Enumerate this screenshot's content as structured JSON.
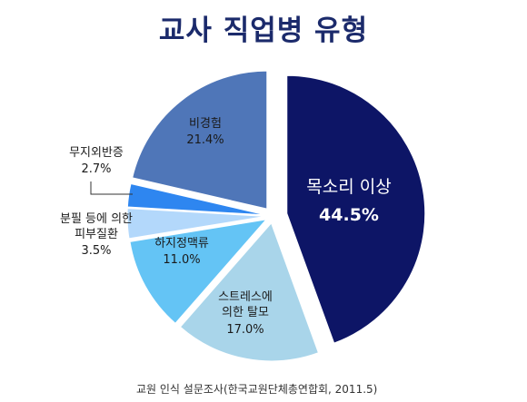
{
  "title": "교사 직업병 유형",
  "source": "교원 인식 설문조사(한국교원단체총연합회, 2011.5)",
  "chart_data": {
    "type": "pie",
    "title": "교사 직업병 유형",
    "slices": [
      {
        "name": "목소리 이상",
        "value": 44.5,
        "label": "44.5%",
        "color": "#0d1566"
      },
      {
        "name": "스트레스에 의한 탈모",
        "value": 17.0,
        "label": "17.0%",
        "color": "#a9d5ea"
      },
      {
        "name": "하지정맥류",
        "value": 11.0,
        "label": "11.0%",
        "color": "#64c4f5"
      },
      {
        "name": "분필 등에 의한 피부질환",
        "value": 3.5,
        "label": "3.5%",
        "color": "#b3d8fb"
      },
      {
        "name": "무지외반증",
        "value": 2.7,
        "label": "2.7%",
        "color": "#2e86f0"
      },
      {
        "name": "비경험",
        "value": 21.4,
        "label": "21.4%",
        "color": "#4f76b8"
      }
    ]
  }
}
